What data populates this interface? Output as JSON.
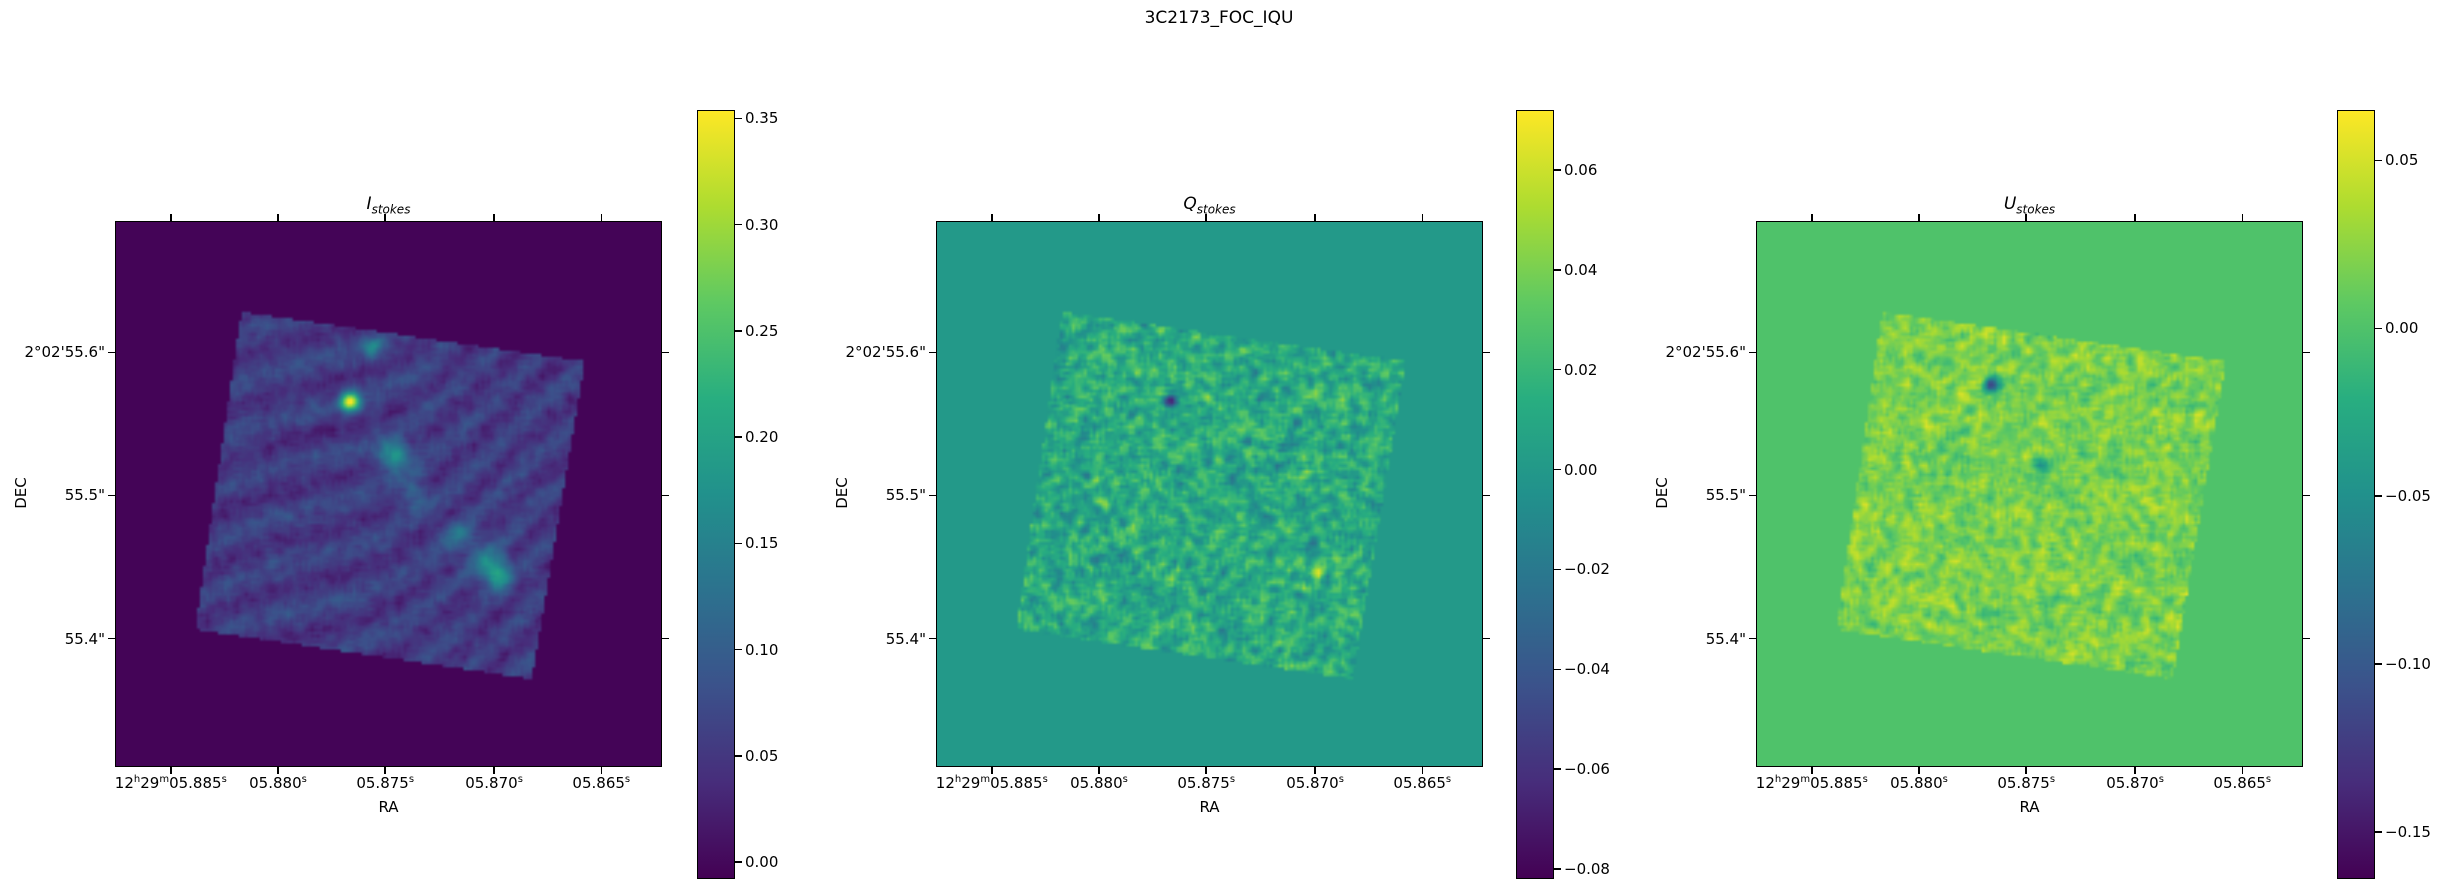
{
  "figure": {
    "title": "3C2173_FOC_IQU"
  },
  "chart_data": [
    {
      "type": "heatmap",
      "title_main": "I",
      "title_sub": "stokes",
      "xlabel": "RA",
      "ylabel": "DEC",
      "xticks": [
        [
          [
            "12",
            "h"
          ],
          [
            "29",
            "m"
          ],
          [
            "05.885",
            "s"
          ]
        ],
        [
          [
            "05.880",
            "s"
          ]
        ],
        [
          [
            "05.875",
            "s"
          ]
        ],
        [
          [
            "05.870",
            "s"
          ]
        ],
        [
          [
            "05.865",
            "s"
          ]
        ]
      ],
      "yticks": [
        "2°02'55.6\"",
        "55.5\"",
        "55.4\""
      ],
      "colormap": "viridis",
      "colorbar": {
        "range": [
          -0.008,
          0.354
        ],
        "ticks": [
          0.0,
          0.05,
          0.1,
          0.15,
          0.2,
          0.25,
          0.3,
          0.35
        ],
        "tick_labels": [
          "0.00",
          "0.05",
          "0.10",
          "0.15",
          "0.20",
          "0.25",
          "0.30",
          "0.35"
        ]
      },
      "background_value": -0.005
    },
    {
      "type": "heatmap",
      "title_main": "Q",
      "title_sub": "stokes",
      "xlabel": "RA",
      "ylabel": "DEC",
      "xticks": [
        [
          [
            "12",
            "h"
          ],
          [
            "29",
            "m"
          ],
          [
            "05.885",
            "s"
          ]
        ],
        [
          [
            "05.880",
            "s"
          ]
        ],
        [
          [
            "05.875",
            "s"
          ]
        ],
        [
          [
            "05.870",
            "s"
          ]
        ],
        [
          [
            "05.865",
            "s"
          ]
        ]
      ],
      "yticks": [
        "2°02'55.6\"",
        "55.5\"",
        "55.4\""
      ],
      "colormap": "viridis",
      "colorbar": {
        "range": [
          -0.082,
          0.072
        ],
        "ticks": [
          -0.08,
          -0.06,
          -0.04,
          -0.02,
          0.0,
          0.02,
          0.04,
          0.06
        ],
        "tick_labels": [
          "−0.08",
          "−0.06",
          "−0.04",
          "−0.02",
          "0.00",
          "0.02",
          "0.04",
          "0.06"
        ]
      },
      "background_value": 0.0
    },
    {
      "type": "heatmap",
      "title_main": "U",
      "title_sub": "stokes",
      "xlabel": "RA",
      "ylabel": "DEC",
      "xticks": [
        [
          [
            "12",
            "h"
          ],
          [
            "29",
            "m"
          ],
          [
            "05.885",
            "s"
          ]
        ],
        [
          [
            "05.880",
            "s"
          ]
        ],
        [
          [
            "05.875",
            "s"
          ]
        ],
        [
          [
            "05.870",
            "s"
          ]
        ],
        [
          [
            "05.865",
            "s"
          ]
        ]
      ],
      "yticks": [
        "2°02'55.6\"",
        "55.5\"",
        "55.4\""
      ],
      "colormap": "viridis",
      "colorbar": {
        "range": [
          -0.164,
          0.065
        ],
        "ticks": [
          -0.15,
          -0.1,
          -0.05,
          0.0,
          0.05
        ],
        "tick_labels": [
          "−0.15",
          "−0.10",
          "−0.05",
          "0.00",
          "0.05"
        ]
      },
      "background_value": 0.0
    }
  ]
}
